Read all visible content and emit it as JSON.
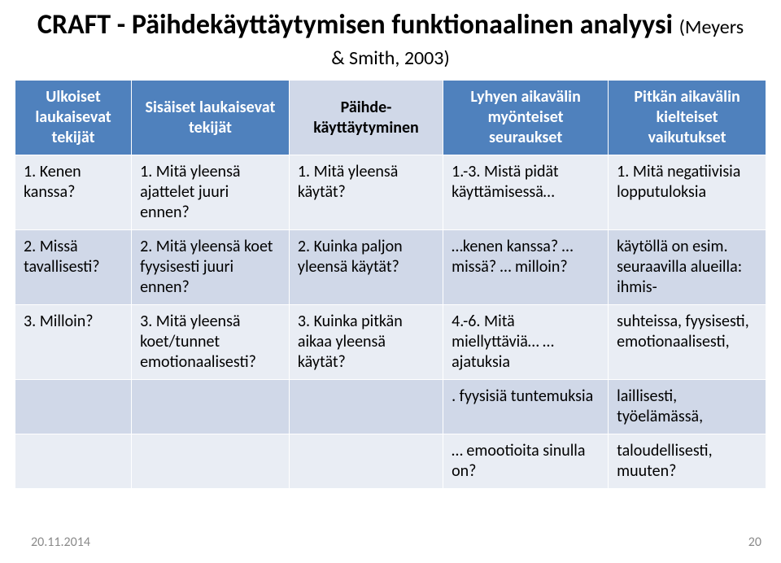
{
  "title_main": "CRAFT - Päihdekäyttäytymisen funktionaalinen analyysi ",
  "title_cite": "(Meyers & Smith, 2003)",
  "footer_date": "20.11.2014",
  "footer_page": "20",
  "colors": {
    "header_dark_bg": "#4f81bd",
    "header_dark_fg": "#ffffff",
    "header_light_bg": "#d0d8e8",
    "row_a_bg": "#e9edf4",
    "row_b_bg": "#d0d8e8",
    "title_color": "#000000",
    "footer_color": "#8a8a8a",
    "cell_border": "#ffffff"
  },
  "fonts": {
    "title_pt": 34,
    "cite_pt": 24,
    "cell_pt": 20,
    "footer_pt": 16
  },
  "col_widths_pct": [
    15.5,
    21,
    20.5,
    22,
    21
  ],
  "headers": [
    {
      "label": "Ulkoiset laukaisevat tekijät",
      "style": "dark"
    },
    {
      "label": "Sisäiset laukaisevat tekijät",
      "style": "dark"
    },
    {
      "label": "Päihde-käyttäytyminen",
      "style": "light"
    },
    {
      "label": "Lyhyen aikavälin myönteiset seuraukset",
      "style": "dark"
    },
    {
      "label": "Pitkän aikavälin kielteiset vaikutukset",
      "style": "dark"
    }
  ],
  "rows": [
    [
      "1. Kenen kanssa?",
      "1. Mitä yleensä ajattelet juuri ennen?",
      "1. Mitä yleensä käytät?",
      "1.-3. Mistä pidät käyttämisessä…",
      "1. Mitä negatiivisia lopputuloksia"
    ],
    [
      "2. Missä tavallisesti?",
      "2. Mitä yleensä koet fyysisesti juuri ennen?",
      "2. Kuinka paljon yleensä käytät?",
      "…kenen kanssa? … missä? … milloin?",
      "käytöllä on esim. seuraavilla alueilla: ihmis-"
    ],
    [
      "3. Milloin?",
      "3. Mitä yleensä koet/tunnet emotionaalisesti?",
      "3. Kuinka pitkän aikaa yleensä käytät?",
      "4.-6. Mitä miellyttäviä… … ajatuksia",
      "suhteissa, fyysisesti, emotionaalisesti,"
    ],
    [
      "",
      "",
      "",
      ". fyysisiä tuntemuksia",
      "laillisesti, työelämässä,"
    ],
    [
      "",
      "",
      "",
      "… emootioita sinulla on?",
      "taloudellisesti, muuten?"
    ]
  ]
}
